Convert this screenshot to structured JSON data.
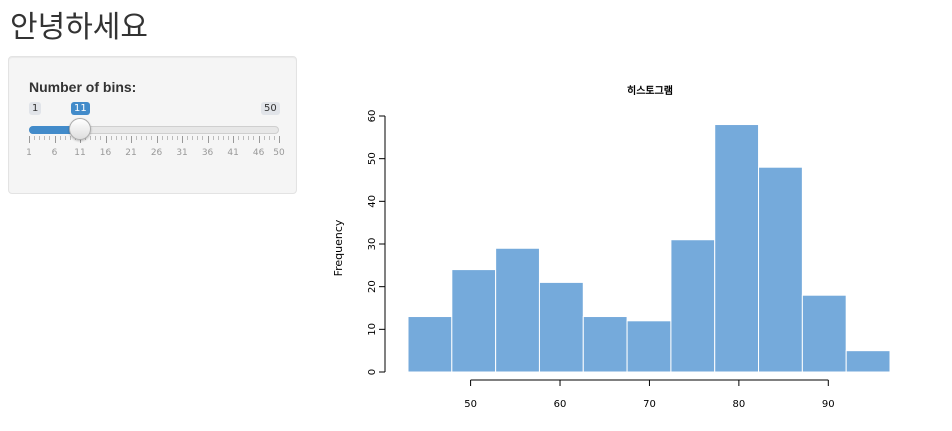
{
  "page": {
    "title": "안녕하세요"
  },
  "slider": {
    "label": "Number of bins:",
    "min": 1,
    "max": 50,
    "value": 11,
    "min_text": "1",
    "max_text": "50",
    "value_text": "11",
    "ticks": [
      1,
      6,
      11,
      16,
      21,
      26,
      31,
      36,
      41,
      46,
      50
    ],
    "accent_color": "#428bca"
  },
  "chart_data": {
    "type": "bar",
    "title": "히스토그램",
    "xlabel": "",
    "ylabel": "Frequency",
    "bar_color": "#75aadb",
    "bin_edges": [
      43,
      47.9,
      52.8,
      57.7,
      62.6,
      67.5,
      72.4,
      77.3,
      82.2,
      87.1,
      92,
      96.9
    ],
    "values": [
      13,
      24,
      29,
      21,
      13,
      12,
      31,
      58,
      48,
      18,
      5
    ],
    "xticks": [
      50,
      60,
      70,
      80,
      90
    ],
    "yticks": [
      0,
      10,
      20,
      30,
      40,
      50,
      60
    ],
    "ylim": [
      0,
      60
    ]
  }
}
